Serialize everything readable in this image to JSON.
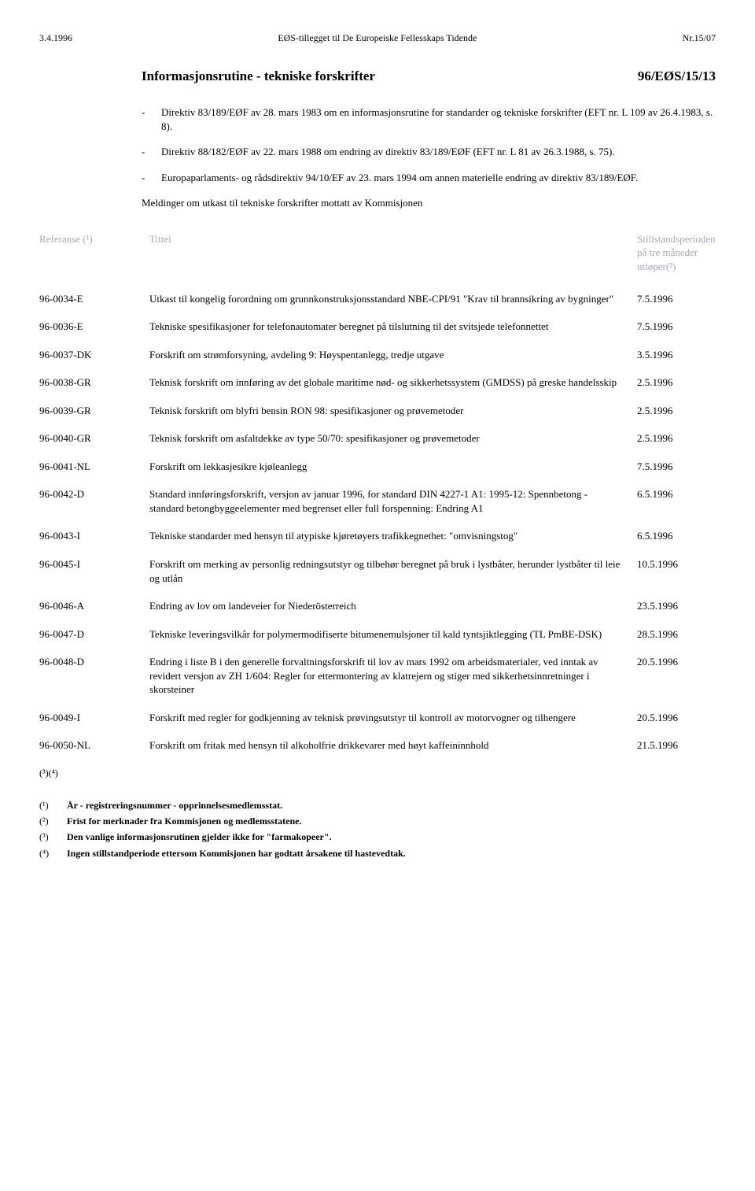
{
  "header": {
    "left": "3.4.1996",
    "center": "EØS-tillegget til De Europeiske Fellesskaps Tidende",
    "right": "Nr.15/07"
  },
  "title": {
    "main": "Informasjonsrutine - tekniske forskrifter",
    "code": "96/EØS/15/13"
  },
  "intro": [
    "Direktiv 83/189/EØF av 28. mars 1983 om en informasjonsrutine for standarder og tekniske forskrifter (EFT nr. L 109 av 26.4.1983, s. 8).",
    "Direktiv 88/182/EØF av 22. mars 1988 om endring av direktiv 83/189/EØF (EFT nr. L 81 av 26.3.1988, s. 75).",
    "Europaparlaments- og rådsdirektiv 94/10/EF av 23. mars 1994 om annen materielle endring av direktiv 83/189/EØF."
  ],
  "subtitle": "Meldinger om utkast til tekniske forskrifter mottatt av Kommisjonen",
  "tableHeader": {
    "ref": "Referanse (¹)",
    "title": "Tittel",
    "date": "Stillstandsperioden på tre måneder utløper(²)"
  },
  "rows": [
    {
      "ref": "96-0034-E",
      "title": "Utkast til kongelig forordning om grunnkonstruksjonsstandard NBE-CPI/91 \"Krav til brannsikring av bygninger\"",
      "date": "7.5.1996"
    },
    {
      "ref": "96-0036-E",
      "title": "Tekniske spesifikasjoner for telefonautomater beregnet på tilslutning til det svitsjede telefonnettet",
      "date": "7.5.1996"
    },
    {
      "ref": "96-0037-DK",
      "title": "Forskrift om strømforsyning, avdeling 9: Høyspentanlegg, tredje utgave",
      "date": "3.5.1996"
    },
    {
      "ref": "96-0038-GR",
      "title": "Teknisk forskrift om innføring av det globale maritime nød- og sikkerhetssystem (GMDSS) på greske handelsskip",
      "date": "2.5.1996"
    },
    {
      "ref": "96-0039-GR",
      "title": "Teknisk forskrift om blyfri bensin RON 98: spesifikasjoner og prøvemetoder",
      "date": "2.5.1996"
    },
    {
      "ref": "96-0040-GR",
      "title": "Teknisk forskrift om asfaltdekke av type 50/70: spesifikasjoner og prøvemetoder",
      "date": "2.5.1996"
    },
    {
      "ref": "96-0041-NL",
      "title": "Forskrift om lekkasjesikre kjøleanlegg",
      "date": "7.5.1996"
    },
    {
      "ref": "96-0042-D",
      "title": "Standard innføringsforskrift, versjon av januar 1996, for standard DIN 4227-1 A1: 1995-12: Spennbetong - standard betongbyggeelementer med begrenset eller full forspenning: Endring A1",
      "date": "6.5.1996"
    },
    {
      "ref": "96-0043-I",
      "title": "Tekniske standarder med hensyn til atypiske kjøretøyers trafikkegnethet: \"omvisningstog\"",
      "date": "6.5.1996"
    },
    {
      "ref": "96-0045-I",
      "title": "Forskrift om merking av personlig redningsutstyr og tilbehør beregnet på bruk i lystbåter, herunder lystbåter til leie og utlån",
      "date": "10.5.1996"
    },
    {
      "ref": "96-0046-A",
      "title": "Endring av lov om landeveier for Niederösterreich",
      "date": "23.5.1996"
    },
    {
      "ref": "96-0047-D",
      "title": "Tekniske leveringsvilkår for polymermodifiserte bitumenemulsjoner til kald tyntsjiktlegging (TL PmBE-DSK)",
      "date": "28.5.1996"
    },
    {
      "ref": "96-0048-D",
      "title": "Endring i liste B i den generelle forvaltningsforskrift til lov av mars 1992 om arbeidsmaterialer, ved inntak av revidert versjon av ZH 1/604: Regler for ettermontering av klatrejern og stiger med sikkerhetsinnretninger i skorsteiner",
      "date": "20.5.1996"
    },
    {
      "ref": "96-0049-I",
      "title": "Forskrift med regler for godkjenning av teknisk prøvingsutstyr til kontroll av motorvogner og tilhengere",
      "date": "20.5.1996"
    },
    {
      "ref": "96-0050-NL",
      "title": "Forskrift om fritak med hensyn til alkoholfrie drikkevarer med høyt kaffeininnhold",
      "date": "21.5.1996"
    }
  ],
  "fnCombo": "(³)(⁴)",
  "footnotes": [
    {
      "marker": "(¹)",
      "text": "År - registreringsnummer - opprinnelsesmedlemsstat."
    },
    {
      "marker": "(²)",
      "text": "Frist for merknader fra Kommisjonen og medlemsstatene."
    },
    {
      "marker": "(³)",
      "text": "Den vanlige informasjonsrutinen gjelder ikke for \"farmakopeer\"."
    },
    {
      "marker": "(⁴)",
      "text": "Ingen stillstandperiode ettersom Kommisjonen har godtatt årsakene til hastevedtak."
    }
  ]
}
